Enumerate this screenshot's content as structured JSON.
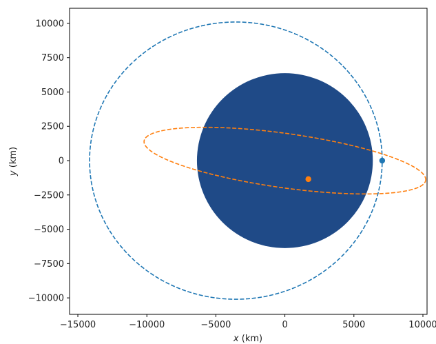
{
  "chart_data": {
    "type": "orbit-plot",
    "xlabel_var": "x",
    "xlabel_unit": " (km)",
    "ylabel_var": "y",
    "ylabel_unit": " (km)",
    "xlim": [
      -15600,
      10300
    ],
    "ylim": [
      -11200,
      11100
    ],
    "x_ticks": [
      {
        "v": -15000,
        "label": "−15000"
      },
      {
        "v": -10000,
        "label": "−10000"
      },
      {
        "v": -5000,
        "label": "−5000"
      },
      {
        "v": 0,
        "label": "0"
      },
      {
        "v": 5000,
        "label": "5000"
      },
      {
        "v": 10000,
        "label": "10000"
      }
    ],
    "y_ticks": [
      {
        "v": 10000,
        "label": "10000"
      },
      {
        "v": 7500,
        "label": "7500"
      },
      {
        "v": 5000,
        "label": "5000"
      },
      {
        "v": 2500,
        "label": "2500"
      },
      {
        "v": 0,
        "label": "0"
      },
      {
        "v": -2500,
        "label": "−2500"
      },
      {
        "v": -5000,
        "label": "−5000"
      },
      {
        "v": -7500,
        "label": "−7500"
      },
      {
        "v": -10000,
        "label": "−10000"
      }
    ],
    "grid": false,
    "planet": {
      "center": [
        0,
        0
      ],
      "radius": 6371,
      "color": "#1f4a87"
    },
    "series": [
      {
        "color": "#1f77b4",
        "orbit": {
          "center": [
            -3550,
            0
          ],
          "semi_major": 10600,
          "semi_minor": 10100,
          "tilt_deg": 0
        },
        "position": [
          7050,
          0
        ]
      },
      {
        "color": "#ff7f0e",
        "orbit": {
          "center": [
            0,
            0
          ],
          "semi_major": 10300,
          "semi_minor": 1980,
          "tilt_deg": -8
        },
        "position": [
          1700,
          -1350
        ]
      }
    ]
  }
}
